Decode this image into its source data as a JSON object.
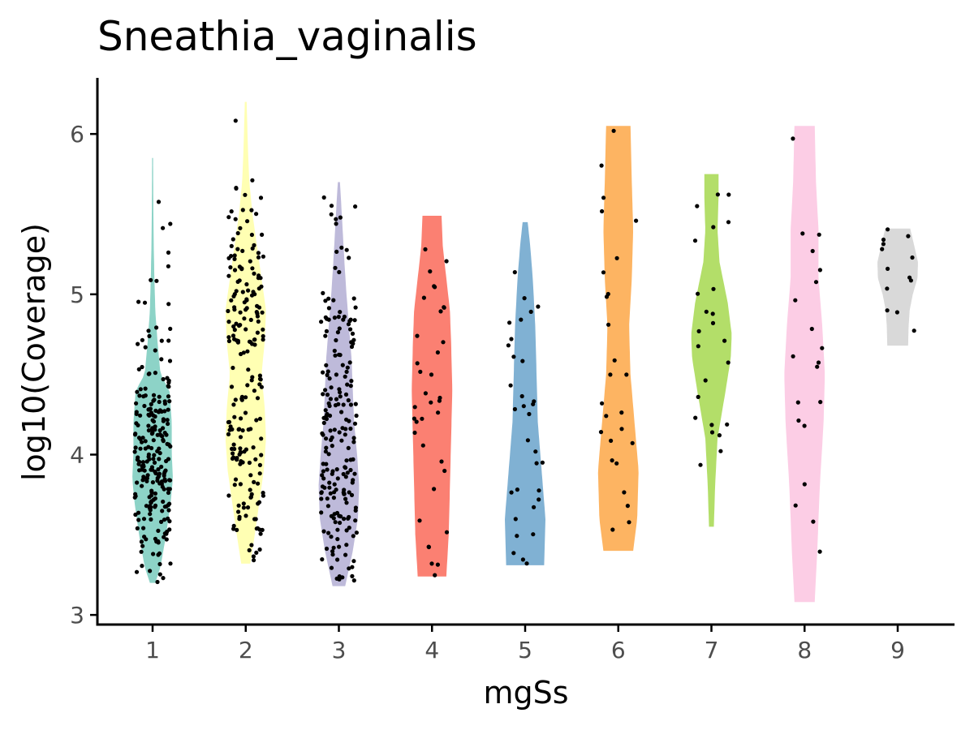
{
  "chart_data": {
    "type": "violin",
    "title": "Sneathia_vaginalis",
    "xlabel": "mgSs",
    "ylabel": "log10(Coverage)",
    "ylim": [
      2.94,
      6.35
    ],
    "yticks": [
      3,
      4,
      5,
      6
    ],
    "grid": false,
    "legend": "none",
    "point_color": "#000000",
    "groups": [
      {
        "category": "1",
        "color": "#8DD3C7",
        "n": 240,
        "min": 3.2,
        "max": 5.85,
        "density": [
          [
            3.2,
            0.12
          ],
          [
            3.3,
            0.35
          ],
          [
            3.5,
            0.6
          ],
          [
            3.7,
            0.8
          ],
          [
            3.85,
            0.9
          ],
          [
            4.0,
            0.85
          ],
          [
            4.2,
            0.85
          ],
          [
            4.4,
            0.75
          ],
          [
            4.5,
            0.35
          ],
          [
            4.7,
            0.22
          ],
          [
            4.9,
            0.12
          ],
          [
            5.1,
            0.08
          ],
          [
            5.3,
            0.05
          ],
          [
            5.6,
            0.03
          ],
          [
            5.85,
            0.02
          ]
        ]
      },
      {
        "category": "2",
        "color": "#FFFFB3",
        "n": 200,
        "min": 3.32,
        "max": 6.2,
        "density": [
          [
            3.32,
            0.1
          ],
          [
            3.5,
            0.2
          ],
          [
            3.7,
            0.3
          ],
          [
            3.9,
            0.4
          ],
          [
            4.1,
            0.45
          ],
          [
            4.3,
            0.42
          ],
          [
            4.5,
            0.35
          ],
          [
            4.7,
            0.42
          ],
          [
            4.9,
            0.45
          ],
          [
            5.1,
            0.35
          ],
          [
            5.3,
            0.25
          ],
          [
            5.5,
            0.15
          ],
          [
            5.7,
            0.08
          ],
          [
            5.9,
            0.05
          ],
          [
            6.2,
            0.02
          ]
        ]
      },
      {
        "category": "3",
        "color": "#BEBADA",
        "n": 200,
        "min": 3.18,
        "max": 5.7,
        "density": [
          [
            3.18,
            0.25
          ],
          [
            3.4,
            0.55
          ],
          [
            3.6,
            0.75
          ],
          [
            3.8,
            0.8
          ],
          [
            4.0,
            0.72
          ],
          [
            4.2,
            0.6
          ],
          [
            4.4,
            0.55
          ],
          [
            4.6,
            0.5
          ],
          [
            4.8,
            0.4
          ],
          [
            5.0,
            0.3
          ],
          [
            5.2,
            0.22
          ],
          [
            5.4,
            0.15
          ],
          [
            5.6,
            0.08
          ],
          [
            5.7,
            0.04
          ]
        ]
      },
      {
        "category": "4",
        "color": "#FB8072",
        "n": 36,
        "min": 3.24,
        "max": 5.49,
        "density": [
          [
            3.24,
            0.6
          ],
          [
            3.5,
            0.7
          ],
          [
            3.8,
            0.75
          ],
          [
            4.1,
            0.8
          ],
          [
            4.4,
            0.85
          ],
          [
            4.7,
            0.8
          ],
          [
            4.9,
            0.75
          ],
          [
            5.1,
            0.6
          ],
          [
            5.3,
            0.45
          ],
          [
            5.49,
            0.4
          ]
        ]
      },
      {
        "category": "5",
        "color": "#80B1D3",
        "n": 32,
        "min": 3.31,
        "max": 5.45,
        "density": [
          [
            3.31,
            0.75
          ],
          [
            3.6,
            0.8
          ],
          [
            3.9,
            0.65
          ],
          [
            4.2,
            0.5
          ],
          [
            4.5,
            0.45
          ],
          [
            4.8,
            0.4
          ],
          [
            5.1,
            0.3
          ],
          [
            5.3,
            0.2
          ],
          [
            5.45,
            0.1
          ]
        ]
      },
      {
        "category": "6",
        "color": "#FDB462",
        "n": 26,
        "min": 3.4,
        "max": 6.05,
        "density": [
          [
            3.4,
            0.55
          ],
          [
            3.6,
            0.7
          ],
          [
            3.9,
            0.75
          ],
          [
            4.2,
            0.6
          ],
          [
            4.5,
            0.45
          ],
          [
            4.8,
            0.4
          ],
          [
            5.1,
            0.5
          ],
          [
            5.4,
            0.55
          ],
          [
            5.7,
            0.5
          ],
          [
            6.05,
            0.45
          ]
        ]
      },
      {
        "category": "7",
        "color": "#B3DE69",
        "n": 24,
        "min": 3.55,
        "max": 5.75,
        "density": [
          [
            3.55,
            0.12
          ],
          [
            3.8,
            0.18
          ],
          [
            4.1,
            0.3
          ],
          [
            4.4,
            0.7
          ],
          [
            4.6,
            0.95
          ],
          [
            4.75,
            1.0
          ],
          [
            4.95,
            0.8
          ],
          [
            5.2,
            0.4
          ],
          [
            5.4,
            0.3
          ],
          [
            5.6,
            0.35
          ],
          [
            5.75,
            0.35
          ]
        ]
      },
      {
        "category": "8",
        "color": "#FCCDE5",
        "n": 20,
        "min": 3.08,
        "max": 6.05,
        "density": [
          [
            3.08,
            0.4
          ],
          [
            3.4,
            0.5
          ],
          [
            3.8,
            0.6
          ],
          [
            4.2,
            0.75
          ],
          [
            4.5,
            0.8
          ],
          [
            4.8,
            0.7
          ],
          [
            5.1,
            0.55
          ],
          [
            5.4,
            0.55
          ],
          [
            5.7,
            0.45
          ],
          [
            6.05,
            0.4
          ]
        ]
      },
      {
        "category": "9",
        "color": "#D9D9D9",
        "n": 13,
        "min": 4.68,
        "max": 5.41,
        "density": [
          [
            4.68,
            1.0
          ],
          [
            4.8,
            1.05
          ],
          [
            4.9,
            1.15
          ],
          [
            5.0,
            1.45
          ],
          [
            5.1,
            1.9
          ],
          [
            5.2,
            1.95
          ],
          [
            5.3,
            1.6
          ],
          [
            5.41,
            1.2
          ]
        ]
      }
    ]
  }
}
